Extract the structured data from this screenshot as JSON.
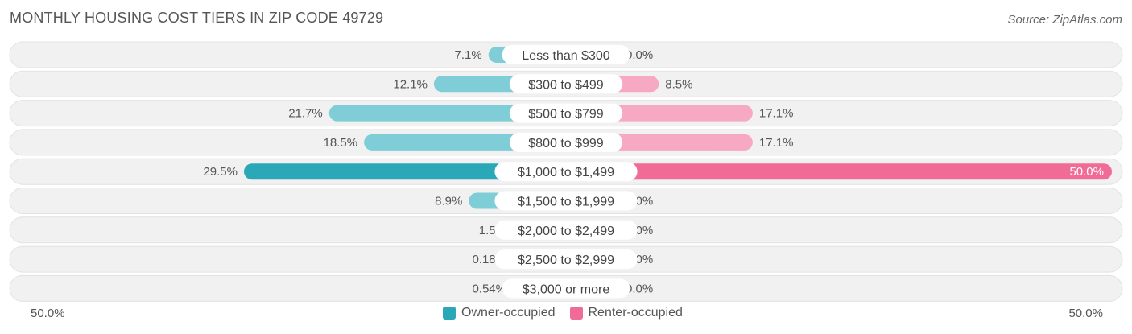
{
  "title": "MONTHLY HOUSING COST TIERS IN ZIP CODE 49729",
  "source": "Source: ZipAtlas.com",
  "colors": {
    "owner_dark": "#2aa8b8",
    "owner_light": "#7fcdd6",
    "renter_dark": "#f06b95",
    "renter_light": "#f7a8c2",
    "row_bg": "#f1f1f1"
  },
  "axis": {
    "left_label": "50.0%",
    "right_label": "50.0%"
  },
  "legend": [
    {
      "label": "Owner-occupied",
      "color": "#2aa8b8"
    },
    {
      "label": "Renter-occupied",
      "color": "#f06b95"
    }
  ],
  "chart_data": {
    "type": "bar",
    "orientation": "horizontal-diverging",
    "xlim": [
      -50,
      50
    ],
    "categories": [
      "Less than $300",
      "$300 to $499",
      "$500 to $799",
      "$800 to $999",
      "$1,000 to $1,499",
      "$1,500 to $1,999",
      "$2,000 to $2,499",
      "$2,500 to $2,999",
      "$3,000 or more"
    ],
    "series": [
      {
        "name": "Owner-occupied",
        "values": [
          7.1,
          12.1,
          21.7,
          18.5,
          29.5,
          8.9,
          1.5,
          0.18,
          0.54
        ],
        "labels": [
          "7.1%",
          "12.1%",
          "21.7%",
          "18.5%",
          "29.5%",
          "8.9%",
          "1.5%",
          "0.18%",
          "0.54%"
        ]
      },
      {
        "name": "Renter-occupied",
        "values": [
          0.0,
          8.5,
          17.1,
          17.1,
          50.0,
          0.0,
          0.0,
          0.0,
          0.0
        ],
        "labels": [
          "0.0%",
          "8.5%",
          "17.1%",
          "17.1%",
          "50.0%",
          "0.0%",
          "0.0%",
          "0.0%",
          "0.0%"
        ]
      }
    ]
  }
}
